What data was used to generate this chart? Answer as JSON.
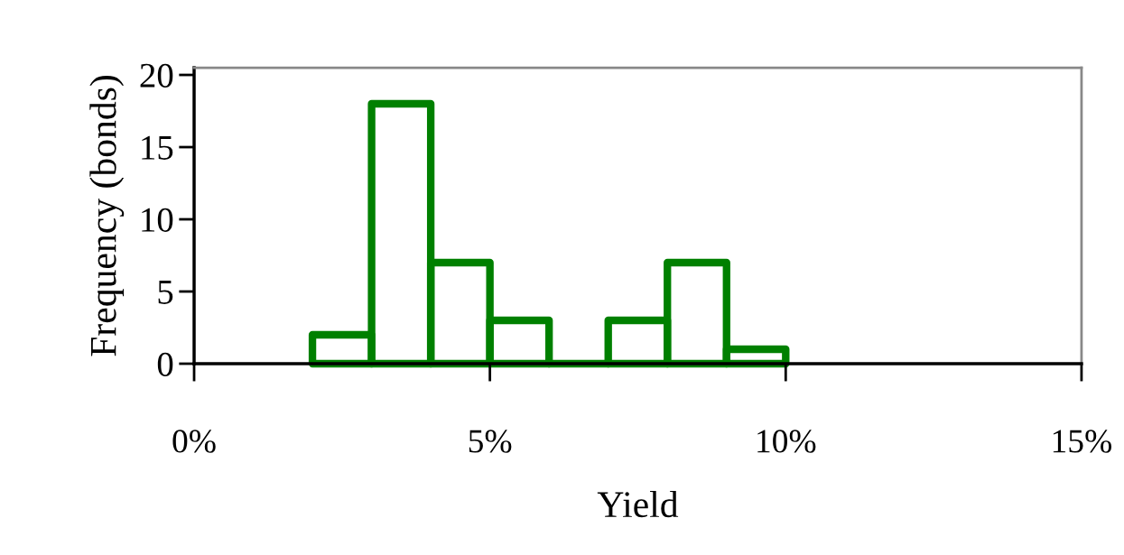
{
  "chart_data": {
    "type": "histogram",
    "xlabel": "Yield",
    "ylabel": "Frequency (bonds)",
    "bins": [
      2,
      3,
      4,
      5,
      6,
      7,
      8,
      9,
      10
    ],
    "values": [
      2,
      18,
      7,
      3,
      0,
      3,
      7,
      1
    ],
    "color": "#008000",
    "xlim": [
      0,
      15
    ],
    "xticks": [
      {
        "value": 0,
        "label": "0%"
      },
      {
        "value": 5,
        "label": "5%"
      },
      {
        "value": 10,
        "label": "10%"
      },
      {
        "value": 15,
        "label": "15%"
      }
    ],
    "ylim": [
      0,
      20.5
    ],
    "yticks": [
      0,
      5,
      10,
      15,
      20
    ],
    "grid": false,
    "legend": false
  }
}
